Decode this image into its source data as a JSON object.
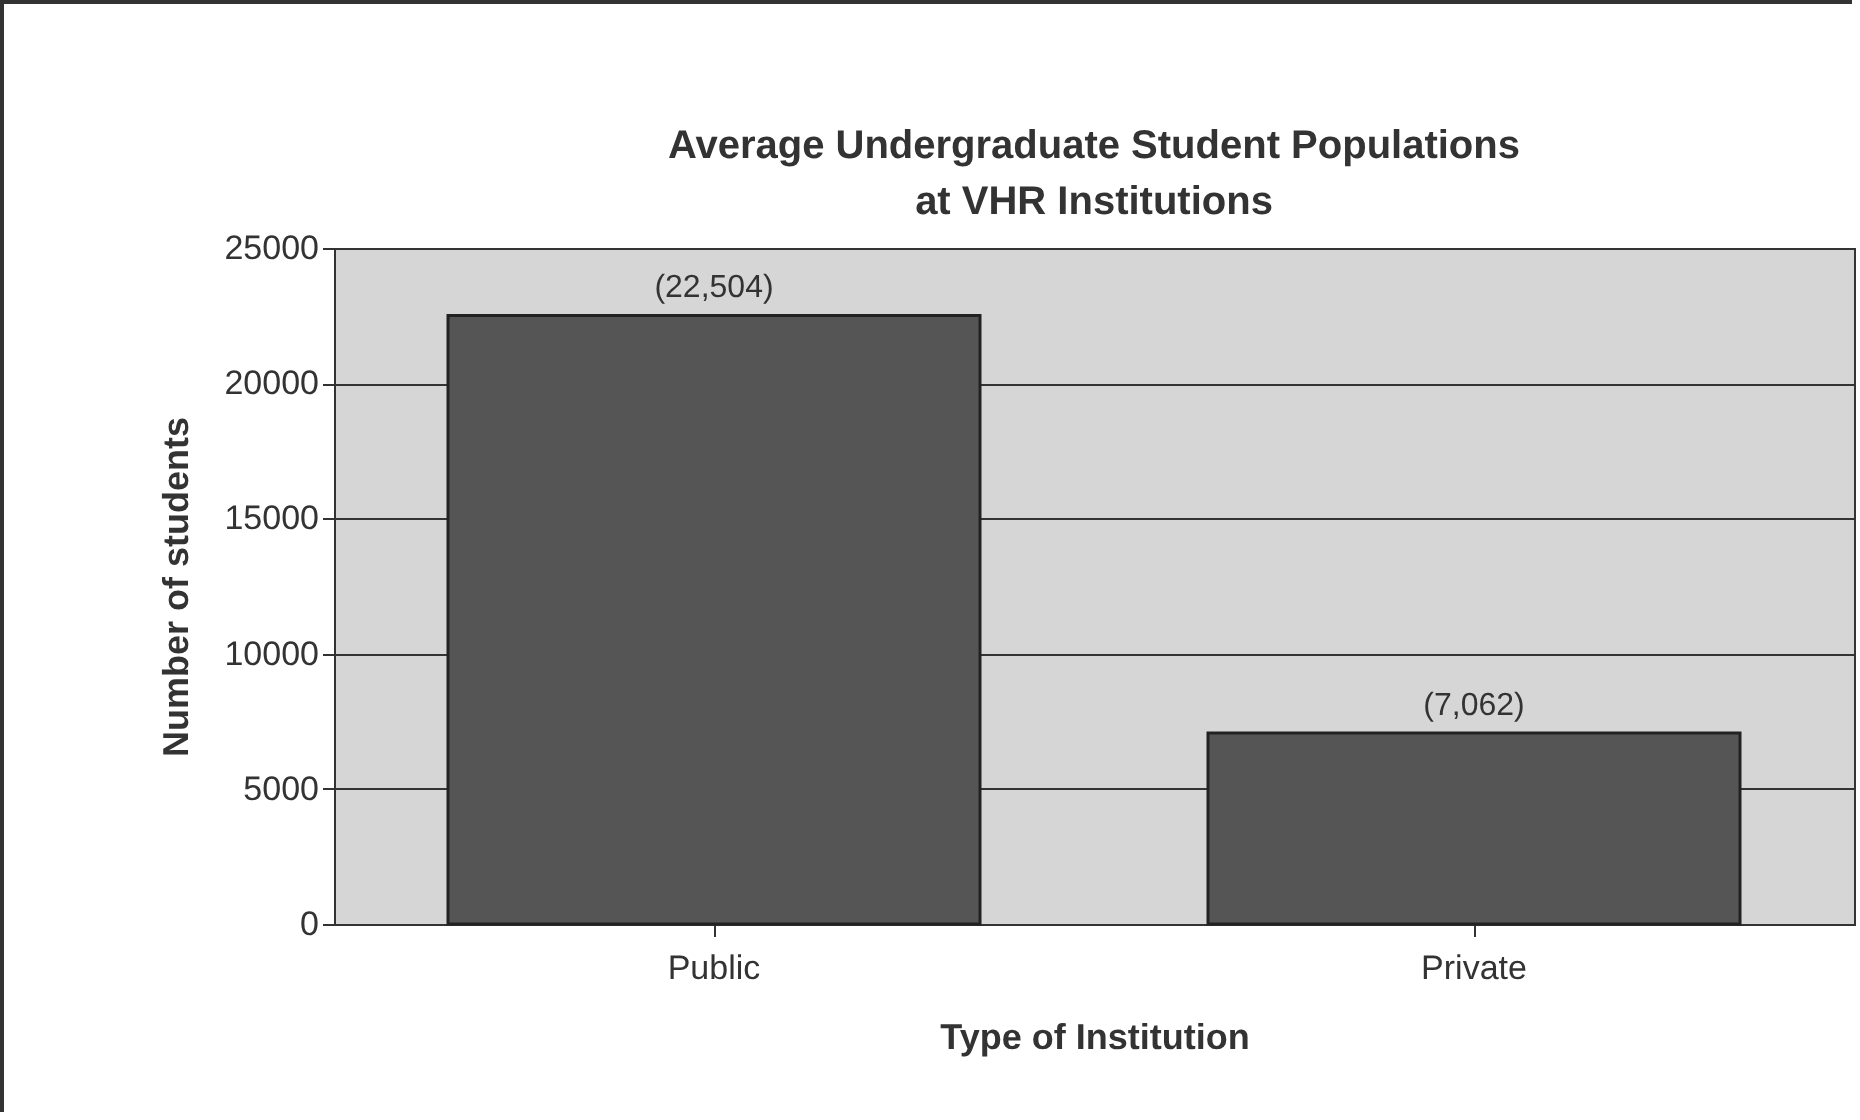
{
  "chart_data": {
    "type": "bar",
    "title": [
      "Average Undergraduate Student Populations",
      "at VHR Institutions"
    ],
    "xlabel": "Type of Institution",
    "ylabel": "Number of students",
    "categories": [
      "Public",
      "Private"
    ],
    "values": [
      22504,
      7062
    ],
    "value_labels": [
      "(22,504)",
      "(7,062)"
    ],
    "color": "#555555",
    "ylim": [
      0,
      25000
    ],
    "yticks": [
      0,
      5000,
      10000,
      15000,
      20000,
      25000
    ],
    "grid": "y"
  }
}
